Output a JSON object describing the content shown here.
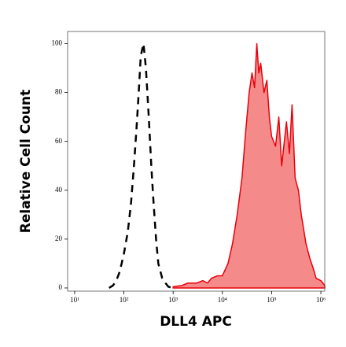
{
  "chart_data": {
    "type": "histogram-overlay",
    "xlabel": "DLL4 APC",
    "ylabel": "Relative Cell Count",
    "xscale": "log",
    "xlim": [
      7.2,
      1200000
    ],
    "ylim": [
      -1.3,
      105
    ],
    "xticks": [
      {
        "value": 10,
        "label": "10¹"
      },
      {
        "value": 100,
        "label": "10²"
      },
      {
        "value": 1000,
        "label": "10³"
      },
      {
        "value": 10000,
        "label": "10⁴"
      },
      {
        "value": 100000,
        "label": "10⁵"
      },
      {
        "value": 1000000,
        "label": "10⁶"
      }
    ],
    "yticks": [
      0,
      20,
      40,
      60,
      80,
      100
    ],
    "series": [
      {
        "style": "filled",
        "color": "#e8000b",
        "fill": "#f58a8a",
        "x": [
          1000,
          1500,
          2000,
          3000,
          4000,
          5000,
          6000,
          8000,
          10000,
          13000,
          16000,
          20000,
          25000,
          30000,
          35000,
          40000,
          45000,
          50000,
          55000,
          60000,
          70000,
          80000,
          90000,
          100000,
          120000,
          140000,
          160000,
          200000,
          230000,
          260000,
          300000,
          350000,
          400000,
          500000,
          600000,
          700000,
          800000,
          1000000,
          1200000
        ],
        "values": [
          0.5,
          1,
          2,
          2,
          3,
          2,
          4,
          5,
          5,
          10,
          18,
          30,
          45,
          65,
          80,
          88,
          82,
          100,
          88,
          92,
          80,
          85,
          70,
          62,
          58,
          70,
          50,
          68,
          55,
          75,
          45,
          40,
          30,
          18,
          12,
          8,
          4,
          3,
          1
        ]
      },
      {
        "style": "dashed",
        "color": "#000000",
        "x": [
          50,
          60,
          70,
          80,
          90,
          100,
          120,
          140,
          160,
          180,
          200,
          220,
          250,
          280,
          320,
          360,
          400,
          450,
          500,
          600,
          700,
          800,
          1000
        ],
        "values": [
          0,
          1,
          3,
          6,
          10,
          14,
          23,
          35,
          50,
          65,
          80,
          95,
          100,
          90,
          70,
          50,
          35,
          20,
          10,
          4,
          2,
          0.5,
          0
        ]
      }
    ]
  }
}
